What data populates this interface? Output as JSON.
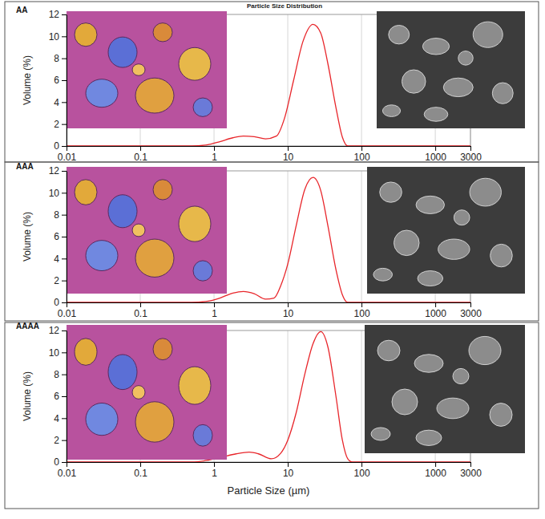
{
  "chart_data": [
    {
      "type": "line",
      "title": "Particle Size Distribution",
      "panel_label": "AA",
      "y_label": "Volume (%)",
      "log": "x",
      "grid": true,
      "color": "#e8262b",
      "x": [
        0.01,
        0.5,
        0.8,
        1.2,
        1.8,
        2.5,
        3.5,
        5,
        7,
        9,
        12,
        16,
        22,
        28,
        35,
        45,
        55,
        65,
        3000
      ],
      "values": [
        0,
        0,
        0.1,
        0.4,
        0.75,
        0.9,
        0.85,
        0.65,
        0.9,
        2.5,
        6,
        9.5,
        11.1,
        10.3,
        7.5,
        3.5,
        0.8,
        0,
        0
      ],
      "xlim": [
        0.01,
        3000
      ],
      "xticks": [
        0.01,
        0.1,
        1,
        10,
        100,
        1000,
        3000
      ],
      "ylim": [
        0,
        12
      ],
      "yticks": [
        0,
        2,
        4,
        6,
        8,
        10,
        12
      ]
    },
    {
      "type": "line",
      "panel_label": "AAA",
      "y_label": "Volume (%)",
      "log": "x",
      "grid": true,
      "color": "#e8262b",
      "x": [
        0.01,
        0.5,
        0.8,
        1.2,
        1.8,
        2.5,
        3.5,
        5,
        6.5,
        8,
        10,
        13,
        17,
        22,
        28,
        35,
        45,
        55,
        65,
        3000
      ],
      "values": [
        0,
        0,
        0.1,
        0.4,
        0.85,
        1.0,
        0.8,
        0.3,
        0.4,
        1.5,
        3.5,
        7,
        10.3,
        11.4,
        10.2,
        7,
        3,
        0.7,
        0,
        0
      ],
      "xlim": [
        0.01,
        3000
      ],
      "xticks": [
        0.01,
        0.1,
        1,
        10,
        100,
        1000,
        3000
      ],
      "ylim": [
        0,
        12
      ],
      "yticks": [
        0,
        2,
        4,
        6,
        8,
        10,
        12
      ]
    },
    {
      "type": "line",
      "panel_label": "AAAA",
      "y_label": "Volume (%)",
      "x_label": "Particle Size (µm)",
      "log": "x",
      "grid": true,
      "color": "#e8262b",
      "x": [
        0.01,
        0.5,
        0.8,
        1.2,
        2,
        3,
        4,
        6,
        8,
        10,
        13,
        17,
        22,
        28,
        35,
        45,
        55,
        65,
        75,
        3000
      ],
      "values": [
        0,
        0,
        0.15,
        0.4,
        0.75,
        0.9,
        0.75,
        0.3,
        0.8,
        2,
        4.5,
        8,
        10.8,
        11.9,
        10.5,
        6,
        2,
        0.3,
        0,
        0
      ],
      "xlim": [
        0.01,
        3000
      ],
      "xticks": [
        0.01,
        0.1,
        1,
        10,
        100,
        1000,
        3000
      ],
      "ylim": [
        0,
        12
      ],
      "yticks": [
        0,
        2,
        4,
        6,
        8,
        10,
        12
      ]
    }
  ]
}
